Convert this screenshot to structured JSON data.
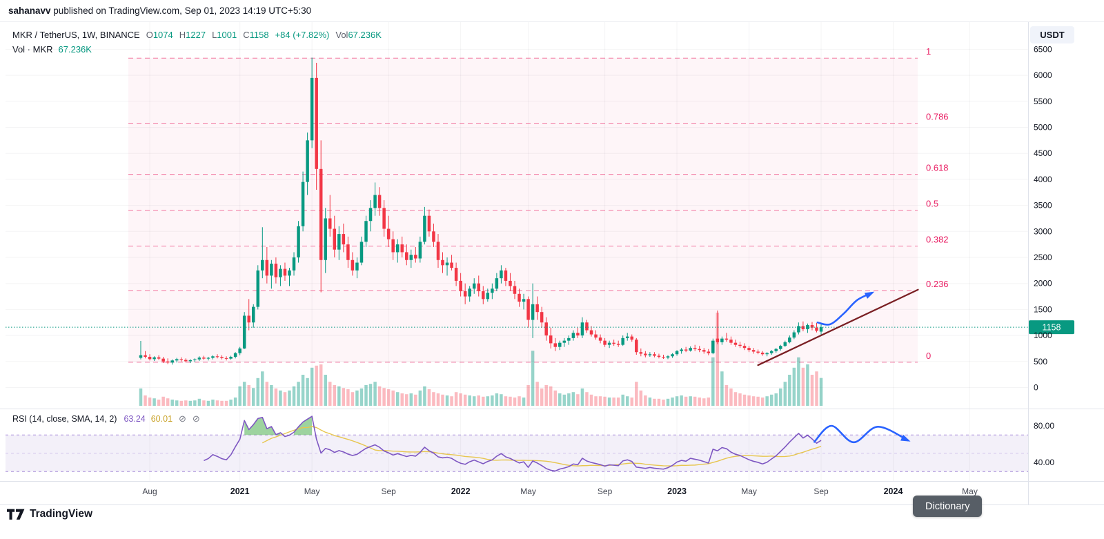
{
  "topbar": {
    "username": "sahanavv",
    "rest": " published on TradingView.com, Sep 01, 2023 14:19 UTC+5:30"
  },
  "toolbar": {
    "currency_button": "USDT"
  },
  "main_legend": {
    "title": "MKR / TetherUS, 1W, BINANCE",
    "o_label": "O",
    "o": "1074",
    "h_label": "H",
    "h": "1227",
    "l_label": "L",
    "l": "1001",
    "c_label": "C",
    "c": "1158",
    "change": "+84 (+7.82%)",
    "vol_label": "Vol",
    "vol": "67.236K"
  },
  "volume_legend": {
    "label": "Vol · MKR",
    "value": "67.236K"
  },
  "rsi_legend": {
    "title": "RSI (14, close, SMA, 14, 2)",
    "rsi_value": "63.24",
    "sma_value": "60.01",
    "eye_icon": "⊘"
  },
  "footer": {
    "brand": "TradingView",
    "dictionary_button": "Dictionary"
  },
  "colors": {
    "up": "#089981",
    "down": "#f23645",
    "fib": "#e91e63",
    "rsi": "#7e57c2",
    "sma": "#e7c64f",
    "annotation": "#2962ff",
    "trend": "#7a1f23",
    "axis_text": "#131722",
    "grid": "#2a2e39",
    "separator": "#e0e3eb"
  },
  "chart_data": {
    "type": "candlestick",
    "symbol": "MKR/TetherUS",
    "timeframe": "1W",
    "exchange": "BINANCE",
    "last_ohlc": {
      "open": 1074,
      "high": 1227,
      "low": 1001,
      "close": 1158,
      "change": "+84 (+7.82%)",
      "volume": "67.236K"
    },
    "price_axis_ticks": [
      6500,
      6000,
      5500,
      5000,
      4500,
      4000,
      3500,
      3000,
      2500,
      2000,
      1500,
      1000,
      500,
      0
    ],
    "current_price": 1158,
    "current_price_label": "1158",
    "fib_levels": [
      {
        "label": "1",
        "price": 6330
      },
      {
        "label": "0.786",
        "price": 5079
      },
      {
        "label": "0.618",
        "price": 4097
      },
      {
        "label": "0.5",
        "price": 3407
      },
      {
        "label": "0.382",
        "price": 2717
      },
      {
        "label": "0.236",
        "price": 1864
      },
      {
        "label": "0",
        "price": 485
      }
    ],
    "time_axis": [
      {
        "text": "Aug",
        "week": 2,
        "bold": false
      },
      {
        "text": "2021",
        "week": 22,
        "bold": true
      },
      {
        "text": "May",
        "week": 38,
        "bold": false
      },
      {
        "text": "Sep",
        "week": 55,
        "bold": false
      },
      {
        "text": "2022",
        "week": 71,
        "bold": true
      },
      {
        "text": "May",
        "week": 86,
        "bold": false
      },
      {
        "text": "Sep",
        "week": 103,
        "bold": false
      },
      {
        "text": "2023",
        "week": 119,
        "bold": true
      },
      {
        "text": "May",
        "week": 135,
        "bold": false
      },
      {
        "text": "Sep",
        "week": 151,
        "bold": false
      },
      {
        "text": "2024",
        "week": 167,
        "bold": true
      },
      {
        "text": "May",
        "week": 184,
        "bold": false
      }
    ],
    "candles": [
      [
        570,
        895,
        540,
        620,
        42
      ],
      [
        620,
        700,
        560,
        590,
        25
      ],
      [
        590,
        640,
        520,
        545,
        20
      ],
      [
        545,
        600,
        510,
        580,
        18
      ],
      [
        580,
        620,
        530,
        555,
        15
      ],
      [
        555,
        590,
        470,
        500,
        22
      ],
      [
        500,
        560,
        450,
        480,
        18
      ],
      [
        480,
        540,
        440,
        520,
        15
      ],
      [
        520,
        570,
        480,
        545,
        13
      ],
      [
        545,
        580,
        500,
        530,
        12
      ],
      [
        530,
        560,
        480,
        505,
        13
      ],
      [
        505,
        545,
        470,
        525,
        12
      ],
      [
        525,
        560,
        490,
        540,
        13
      ],
      [
        540,
        600,
        510,
        575,
        17
      ],
      [
        575,
        610,
        530,
        555,
        13
      ],
      [
        555,
        590,
        520,
        570,
        12
      ],
      [
        570,
        620,
        540,
        600,
        15
      ],
      [
        600,
        640,
        560,
        585,
        13
      ],
      [
        585,
        620,
        540,
        565,
        12
      ],
      [
        565,
        600,
        520,
        555,
        12
      ],
      [
        555,
        610,
        535,
        590,
        15
      ],
      [
        590,
        680,
        560,
        660,
        20
      ],
      [
        660,
        780,
        620,
        750,
        47
      ],
      [
        750,
        1450,
        740,
        1380,
        58
      ],
      [
        1380,
        1700,
        1100,
        1250,
        50
      ],
      [
        1250,
        1600,
        1150,
        1550,
        43
      ],
      [
        1550,
        2350,
        1500,
        2250,
        67
      ],
      [
        2250,
        3080,
        2100,
        2450,
        83
      ],
      [
        2450,
        2700,
        2000,
        2150,
        58
      ],
      [
        2150,
        2450,
        1900,
        2380,
        50
      ],
      [
        2380,
        2500,
        2000,
        2120,
        42
      ],
      [
        2120,
        2350,
        1950,
        2280,
        37
      ],
      [
        2280,
        2400,
        2050,
        2150,
        33
      ],
      [
        2150,
        2300,
        1950,
        2250,
        37
      ],
      [
        2250,
        2600,
        2150,
        2500,
        47
      ],
      [
        2500,
        3200,
        2400,
        3100,
        58
      ],
      [
        3100,
        4150,
        3000,
        3950,
        75
      ],
      [
        3950,
        4900,
        3700,
        4750,
        67
      ],
      [
        4750,
        6340,
        4600,
        5950,
        92
      ],
      [
        5950,
        6240,
        3800,
        4200,
        97
      ],
      [
        4200,
        4750,
        1830,
        2450,
        100
      ],
      [
        2450,
        3450,
        2200,
        3250,
        75
      ],
      [
        3250,
        3700,
        2900,
        3050,
        58
      ],
      [
        3050,
        3300,
        2500,
        2650,
        50
      ],
      [
        2650,
        3100,
        2450,
        2950,
        47
      ],
      [
        2950,
        3150,
        2600,
        2750,
        43
      ],
      [
        2750,
        2900,
        2300,
        2450,
        40
      ],
      [
        2450,
        2600,
        2150,
        2250,
        33
      ],
      [
        2250,
        2500,
        2100,
        2400,
        37
      ],
      [
        2400,
        2900,
        2350,
        2800,
        42
      ],
      [
        2800,
        3300,
        2700,
        3200,
        50
      ],
      [
        3200,
        3600,
        3000,
        3450,
        53
      ],
      [
        3450,
        3940,
        3300,
        3700,
        58
      ],
      [
        3700,
        3850,
        3300,
        3450,
        47
      ],
      [
        3450,
        3600,
        2900,
        3050,
        43
      ],
      [
        3050,
        3300,
        2700,
        2850,
        40
      ],
      [
        2850,
        3000,
        2450,
        2600,
        37
      ],
      [
        2600,
        2850,
        2400,
        2750,
        33
      ],
      [
        2750,
        2900,
        2500,
        2600,
        30
      ],
      [
        2600,
        2750,
        2350,
        2450,
        28
      ],
      [
        2450,
        2650,
        2300,
        2550,
        30
      ],
      [
        2550,
        2700,
        2400,
        2480,
        27
      ],
      [
        2480,
        2900,
        2400,
        2800,
        37
      ],
      [
        2800,
        3470,
        2750,
        3300,
        47
      ],
      [
        3300,
        3420,
        2900,
        3000,
        40
      ],
      [
        3000,
        3150,
        2700,
        2800,
        33
      ],
      [
        2800,
        2950,
        2300,
        2450,
        30
      ],
      [
        2450,
        2600,
        2200,
        2350,
        27
      ],
      [
        2350,
        2500,
        2150,
        2400,
        25
      ],
      [
        2400,
        2550,
        2250,
        2300,
        23
      ],
      [
        2300,
        2400,
        1950,
        2050,
        33
      ],
      [
        2050,
        2200,
        1750,
        1850,
        30
      ],
      [
        1850,
        2000,
        1600,
        1750,
        27
      ],
      [
        1750,
        1950,
        1650,
        1900,
        25
      ],
      [
        1900,
        2100,
        1800,
        2000,
        23
      ],
      [
        2000,
        2150,
        1750,
        1850,
        25
      ],
      [
        1850,
        1950,
        1600,
        1700,
        22
      ],
      [
        1700,
        1900,
        1650,
        1820,
        23
      ],
      [
        1820,
        2000,
        1700,
        1900,
        25
      ],
      [
        1900,
        2200,
        1850,
        2100,
        30
      ],
      [
        2100,
        2350,
        2000,
        2250,
        28
      ],
      [
        2250,
        2300,
        1950,
        2050,
        23
      ],
      [
        2050,
        2200,
        1850,
        1950,
        22
      ],
      [
        1950,
        2050,
        1700,
        1800,
        20
      ],
      [
        1800,
        1900,
        1550,
        1650,
        23
      ],
      [
        1650,
        1800,
        1500,
        1700,
        20
      ],
      [
        1700,
        1750,
        1150,
        1300,
        50
      ],
      [
        1300,
        2000,
        950,
        1600,
        133
      ],
      [
        1600,
        1750,
        1300,
        1450,
        58
      ],
      [
        1450,
        1550,
        1150,
        1250,
        42
      ],
      [
        1250,
        1350,
        900,
        1000,
        50
      ],
      [
        1000,
        1150,
        750,
        850,
        47
      ],
      [
        850,
        950,
        700,
        780,
        37
      ],
      [
        780,
        900,
        720,
        860,
        30
      ],
      [
        860,
        950,
        780,
        900,
        27
      ],
      [
        900,
        1000,
        820,
        950,
        30
      ],
      [
        950,
        1100,
        900,
        1050,
        33
      ],
      [
        1050,
        1150,
        950,
        1000,
        28
      ],
      [
        1000,
        1350,
        950,
        1250,
        42
      ],
      [
        1250,
        1300,
        1050,
        1100,
        33
      ],
      [
        1100,
        1180,
        980,
        1020,
        27
      ],
      [
        1020,
        1100,
        920,
        960,
        23
      ],
      [
        960,
        1020,
        850,
        900,
        23
      ],
      [
        900,
        950,
        780,
        820,
        22
      ],
      [
        820,
        900,
        760,
        860,
        20
      ],
      [
        860,
        920,
        800,
        840,
        20
      ],
      [
        840,
        900,
        780,
        820,
        20
      ],
      [
        820,
        1000,
        800,
        950,
        27
      ],
      [
        950,
        1050,
        900,
        980,
        23
      ],
      [
        980,
        1020,
        880,
        920,
        20
      ],
      [
        920,
        950,
        630,
        680,
        58
      ],
      [
        680,
        750,
        600,
        650,
        37
      ],
      [
        650,
        700,
        580,
        620,
        25
      ],
      [
        620,
        680,
        590,
        640,
        20
      ],
      [
        640,
        680,
        580,
        610,
        17
      ],
      [
        610,
        650,
        560,
        590,
        17
      ],
      [
        590,
        630,
        550,
        575,
        15
      ],
      [
        575,
        620,
        545,
        600,
        17
      ],
      [
        600,
        660,
        570,
        640,
        20
      ],
      [
        640,
        720,
        610,
        700,
        23
      ],
      [
        700,
        760,
        650,
        730,
        25
      ],
      [
        730,
        780,
        680,
        710,
        22
      ],
      [
        710,
        790,
        690,
        760,
        23
      ],
      [
        760,
        820,
        700,
        740,
        22
      ],
      [
        740,
        800,
        680,
        720,
        20
      ],
      [
        720,
        760,
        650,
        690,
        18
      ],
      [
        690,
        740,
        620,
        660,
        20
      ],
      [
        660,
        940,
        640,
        900,
        117
      ],
      [
        940,
        1480,
        830,
        870,
        225
      ],
      [
        870,
        980,
        820,
        940,
        83
      ],
      [
        940,
        1050,
        880,
        920,
        50
      ],
      [
        920,
        980,
        820,
        860,
        42
      ],
      [
        860,
        920,
        780,
        820,
        33
      ],
      [
        820,
        880,
        760,
        800,
        30
      ],
      [
        800,
        850,
        720,
        760,
        27
      ],
      [
        760,
        800,
        680,
        720,
        25
      ],
      [
        720,
        760,
        650,
        690,
        23
      ],
      [
        690,
        730,
        640,
        670,
        22
      ],
      [
        670,
        700,
        610,
        640,
        20
      ],
      [
        640,
        680,
        600,
        660,
        23
      ],
      [
        660,
        720,
        630,
        700,
        27
      ],
      [
        700,
        760,
        670,
        740,
        30
      ],
      [
        740,
        820,
        710,
        800,
        42
      ],
      [
        800,
        900,
        780,
        870,
        58
      ],
      [
        870,
        1000,
        850,
        960,
        75
      ],
      [
        960,
        1100,
        930,
        1060,
        92
      ],
      [
        1060,
        1250,
        1020,
        1180,
        117
      ],
      [
        1180,
        1270,
        1080,
        1120,
        92
      ],
      [
        1120,
        1230,
        1050,
        1200,
        100
      ],
      [
        1200,
        1260,
        1100,
        1150,
        75
      ],
      [
        1150,
        1240,
        1060,
        1090,
        83
      ],
      [
        1074,
        1227,
        1001,
        1158,
        67.236
      ]
    ],
    "rsi": {
      "length": 14,
      "overbought": 70,
      "oversold": 30,
      "middle": 50,
      "axis_ticks": [
        {
          "text": "80.00",
          "value": 80
        },
        {
          "text": "40.00",
          "value": 40
        }
      ]
    },
    "annotations": {
      "trendline": {
        "from": {
          "week": 137,
          "price": 430
        },
        "to": {
          "week": 172.5,
          "price": 1880
        }
      },
      "price_arrow": [
        [
          150.2,
          1250
        ],
        [
          153.0,
          1215
        ],
        [
          156.0,
          1420
        ],
        [
          159.0,
          1680
        ],
        [
          162.3,
          1820
        ]
      ],
      "rsi_arrow": [
        [
          149.5,
          62.5
        ],
        [
          153.3,
          80
        ],
        [
          158.2,
          62
        ],
        [
          163.6,
          79
        ],
        [
          170.3,
          64
        ]
      ]
    }
  }
}
